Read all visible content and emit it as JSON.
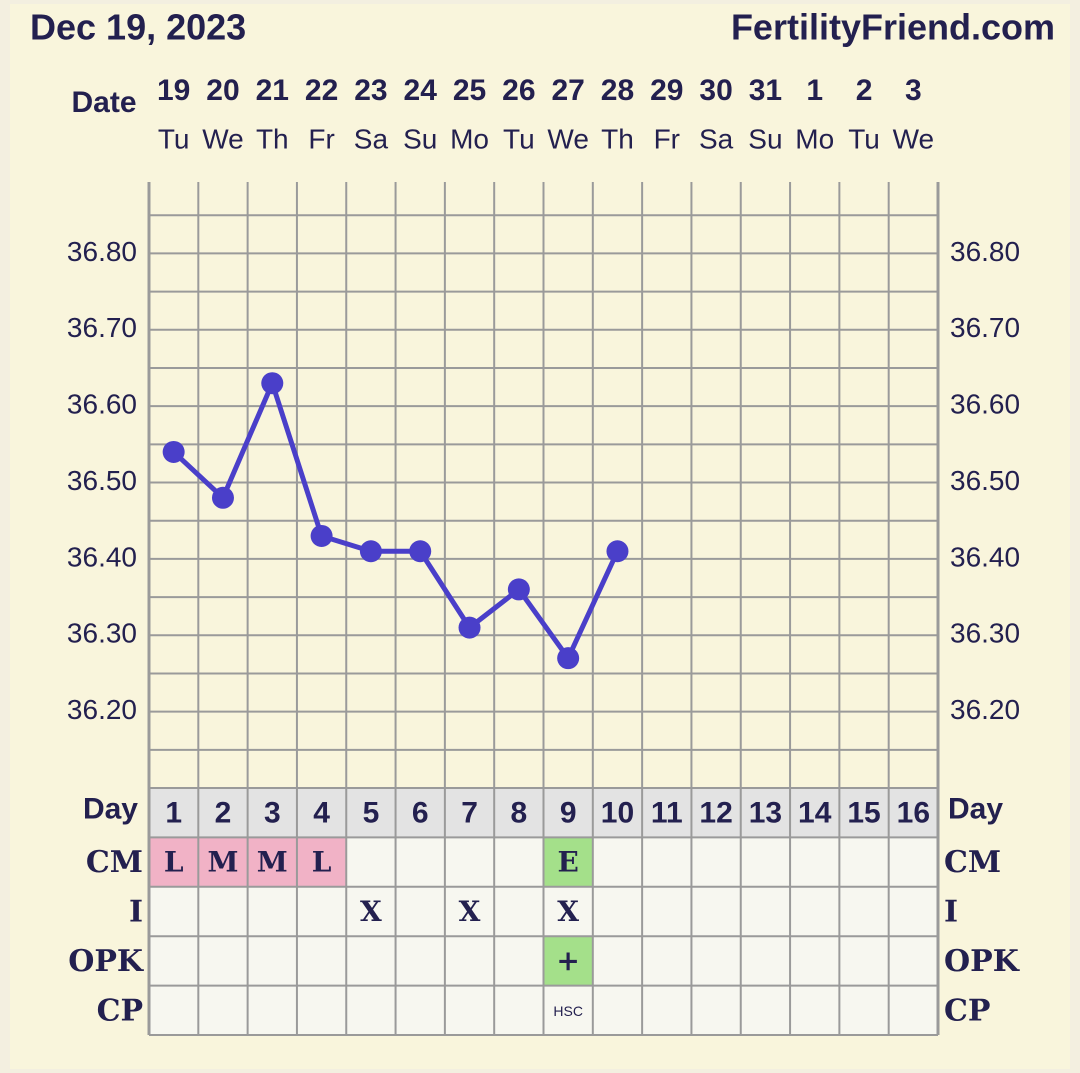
{
  "chart_data": {
    "type": "line",
    "title": "Dec 19, 2023",
    "subtitle": "FertilityFriend.com",
    "date_label": "Date",
    "categories": [
      "19",
      "20",
      "21",
      "22",
      "23",
      "24",
      "25",
      "26",
      "27",
      "28",
      "29",
      "30",
      "31",
      "1",
      "2",
      "3"
    ],
    "weekdays": [
      "Tu",
      "We",
      "Th",
      "Fr",
      "Sa",
      "Su",
      "Mo",
      "Tu",
      "We",
      "Th",
      "Fr",
      "Sa",
      "Su",
      "Mo",
      "Tu",
      "We"
    ],
    "series": [
      {
        "name": null,
        "color": "#4a3fc9",
        "values": [
          36.54,
          36.48,
          36.63,
          36.43,
          36.41,
          36.41,
          36.31,
          36.36,
          36.27,
          36.41,
          null,
          null,
          null,
          null,
          null,
          null
        ]
      }
    ],
    "ylim": [
      36.1,
      36.9
    ],
    "yticks": [
      {
        "value": 36.2,
        "label": "36.20"
      },
      {
        "value": 36.3,
        "label": "36.30"
      },
      {
        "value": 36.4,
        "label": "36.40"
      },
      {
        "value": 36.5,
        "label": "36.50"
      },
      {
        "value": 36.6,
        "label": "36.60"
      },
      {
        "value": 36.7,
        "label": "36.70"
      },
      {
        "value": 36.8,
        "label": "36.80"
      }
    ],
    "minor_grid": [
      36.15,
      36.25,
      36.35,
      36.45,
      36.55,
      36.65,
      36.75,
      36.85
    ],
    "grid": true,
    "day_label": "Day",
    "days": [
      "1",
      "2",
      "3",
      "4",
      "5",
      "6",
      "7",
      "8",
      "9",
      "10",
      "11",
      "12",
      "13",
      "14",
      "15",
      "16"
    ],
    "rows": [
      {
        "name": "CM",
        "cells": [
          "L",
          "M",
          "M",
          "L",
          null,
          null,
          null,
          null,
          "E",
          null,
          null,
          null,
          null,
          null,
          null,
          null
        ],
        "colors": [
          "#f1b2c6",
          "#f1b2c6",
          "#f1b2c6",
          "#f1b2c6",
          null,
          null,
          null,
          null,
          "#a4e08a",
          null,
          null,
          null,
          null,
          null,
          null,
          null
        ]
      },
      {
        "name": "I",
        "cells": [
          null,
          null,
          null,
          null,
          "X",
          null,
          "X",
          null,
          "X",
          null,
          null,
          null,
          null,
          null,
          null,
          null
        ]
      },
      {
        "name": "OPK",
        "cells": [
          null,
          null,
          null,
          null,
          null,
          null,
          null,
          null,
          "+",
          null,
          null,
          null,
          null,
          null,
          null,
          null
        ],
        "colors": [
          null,
          null,
          null,
          null,
          null,
          null,
          null,
          null,
          "#a4e08a",
          null,
          null,
          null,
          null,
          null,
          null,
          null
        ]
      },
      {
        "name": "CP",
        "cells": [
          null,
          null,
          null,
          null,
          null,
          null,
          null,
          null,
          "HSC",
          null,
          null,
          null,
          null,
          null,
          null,
          null
        ]
      }
    ]
  }
}
